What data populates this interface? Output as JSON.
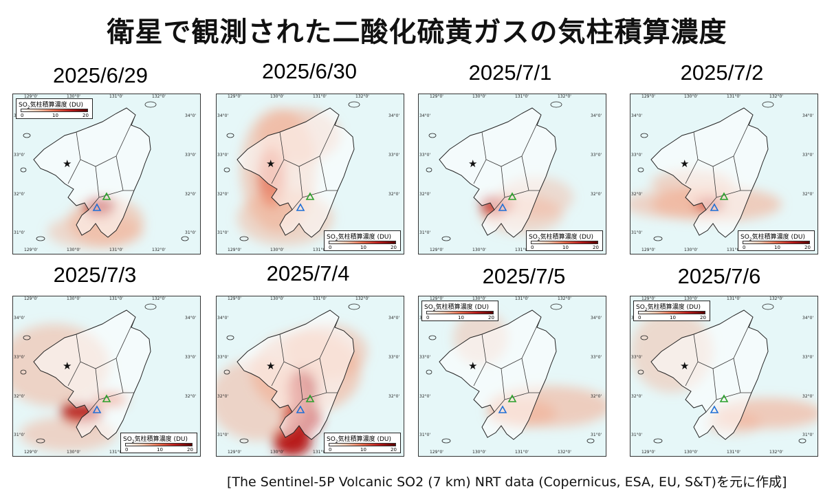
{
  "title": "衛星で観測された二酸化硫黄ガスの気柱積算濃度",
  "source": "[The Sentinel-5P Volcanic SO2 (7 km) NRT data (Copernicus, ESA, EU, S&T)を元に作成]",
  "legend": {
    "label_prefix": "SO",
    "label_sub": "2",
    "label_suffix": "気柱積算濃度 (DU)",
    "values": [
      "0",
      "10",
      "20"
    ],
    "colors": [
      "#ffffff",
      "#f6c9b0",
      "#e56a4c",
      "#b81a1a",
      "#5a0000"
    ]
  },
  "axes": {
    "lon_ticks": [
      "129°0'",
      "130°0'",
      "131°0'",
      "132°0'"
    ],
    "lat_ticks": [
      "34°0'",
      "33°0'",
      "32°0'",
      "31°0'"
    ]
  },
  "markers": {
    "star_color": "#111111",
    "volcano_green": "#2aa02a",
    "volcano_blue": "#1f6fd6"
  },
  "panels": [
    {
      "date": "2025/6/29",
      "legend_pos": "top-left"
    },
    {
      "date": "2025/6/30",
      "legend_pos": "bottom-right"
    },
    {
      "date": "2025/7/1",
      "legend_pos": "bottom-right"
    },
    {
      "date": "2025/7/2",
      "legend_pos": "bottom-right"
    },
    {
      "date": "2025/7/3",
      "legend_pos": "bottom-right"
    },
    {
      "date": "2025/7/4",
      "legend_pos": "bottom-right"
    },
    {
      "date": "2025/7/5",
      "legend_pos": "top-left"
    },
    {
      "date": "2025/7/6",
      "legend_pos": "top-left"
    }
  ]
}
